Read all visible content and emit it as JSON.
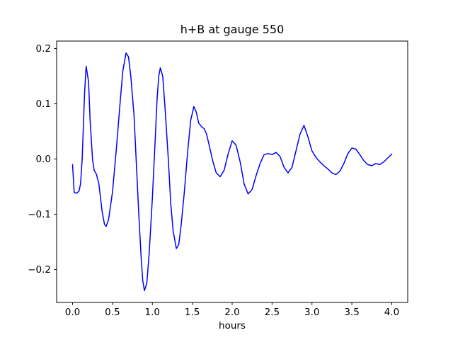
{
  "figure": {
    "background": "#ffffff"
  },
  "chart_data": {
    "type": "line",
    "title": "h+B at gauge 550",
    "xlabel": "hours",
    "ylabel": "",
    "grid": false,
    "legend": "none",
    "xlim": [
      -0.2,
      4.2
    ],
    "ylim": [
      -0.2595,
      0.2135
    ],
    "xticks": {
      "values": [
        0.0,
        0.5,
        1.0,
        1.5,
        2.0,
        2.5,
        3.0,
        3.5,
        4.0
      ],
      "labels": [
        "0.0",
        "0.5",
        "1.0",
        "1.5",
        "2.0",
        "2.5",
        "3.0",
        "3.5",
        "4.0"
      ]
    },
    "yticks": {
      "values": [
        -0.2,
        -0.1,
        0.0,
        0.1,
        0.2
      ],
      "labels": [
        "−0.2",
        "−0.1",
        "0.0",
        "0.1",
        "0.2"
      ]
    },
    "series": [
      {
        "name": "h+B at gauge 550",
        "color": "#0000ff",
        "line_width": 1.5,
        "x": [
          0.0,
          0.02,
          0.05,
          0.08,
          0.1,
          0.12,
          0.15,
          0.17,
          0.2,
          0.22,
          0.25,
          0.27,
          0.3,
          0.33,
          0.37,
          0.4,
          0.42,
          0.45,
          0.5,
          0.55,
          0.6,
          0.63,
          0.67,
          0.7,
          0.73,
          0.77,
          0.8,
          0.83,
          0.86,
          0.88,
          0.9,
          0.93,
          0.96,
          1.0,
          1.03,
          1.06,
          1.08,
          1.1,
          1.13,
          1.16,
          1.2,
          1.23,
          1.26,
          1.3,
          1.33,
          1.36,
          1.4,
          1.44,
          1.48,
          1.52,
          1.55,
          1.58,
          1.62,
          1.65,
          1.68,
          1.72,
          1.76,
          1.8,
          1.85,
          1.9,
          1.95,
          2.0,
          2.05,
          2.1,
          2.15,
          2.2,
          2.25,
          2.3,
          2.35,
          2.4,
          2.45,
          2.5,
          2.55,
          2.6,
          2.65,
          2.7,
          2.75,
          2.8,
          2.85,
          2.9,
          2.95,
          3.0,
          3.05,
          3.1,
          3.15,
          3.2,
          3.25,
          3.3,
          3.35,
          3.4,
          3.45,
          3.5,
          3.55,
          3.6,
          3.65,
          3.7,
          3.75,
          3.8,
          3.85,
          3.9,
          3.95,
          4.0
        ],
        "y": [
          -0.01,
          -0.06,
          -0.062,
          -0.058,
          -0.045,
          0.0,
          0.12,
          0.168,
          0.14,
          0.07,
          0.0,
          -0.02,
          -0.028,
          -0.045,
          -0.095,
          -0.118,
          -0.122,
          -0.11,
          -0.06,
          0.02,
          0.11,
          0.16,
          0.192,
          0.185,
          0.15,
          0.08,
          -0.01,
          -0.1,
          -0.18,
          -0.22,
          -0.238,
          -0.225,
          -0.17,
          -0.07,
          0.02,
          0.11,
          0.15,
          0.165,
          0.15,
          0.09,
          0.0,
          -0.08,
          -0.13,
          -0.162,
          -0.155,
          -0.12,
          -0.06,
          0.01,
          0.07,
          0.095,
          0.085,
          0.065,
          0.058,
          0.055,
          0.045,
          0.02,
          -0.005,
          -0.025,
          -0.032,
          -0.02,
          0.01,
          0.033,
          0.025,
          -0.005,
          -0.045,
          -0.063,
          -0.055,
          -0.03,
          -0.008,
          0.008,
          0.01,
          0.008,
          0.012,
          0.005,
          -0.015,
          -0.025,
          -0.015,
          0.015,
          0.045,
          0.061,
          0.04,
          0.015,
          0.003,
          -0.005,
          -0.012,
          -0.018,
          -0.025,
          -0.028,
          -0.022,
          -0.008,
          0.01,
          0.02,
          0.018,
          0.008,
          -0.003,
          -0.01,
          -0.012,
          -0.008,
          -0.01,
          -0.005,
          0.002,
          0.009
        ]
      }
    ]
  }
}
